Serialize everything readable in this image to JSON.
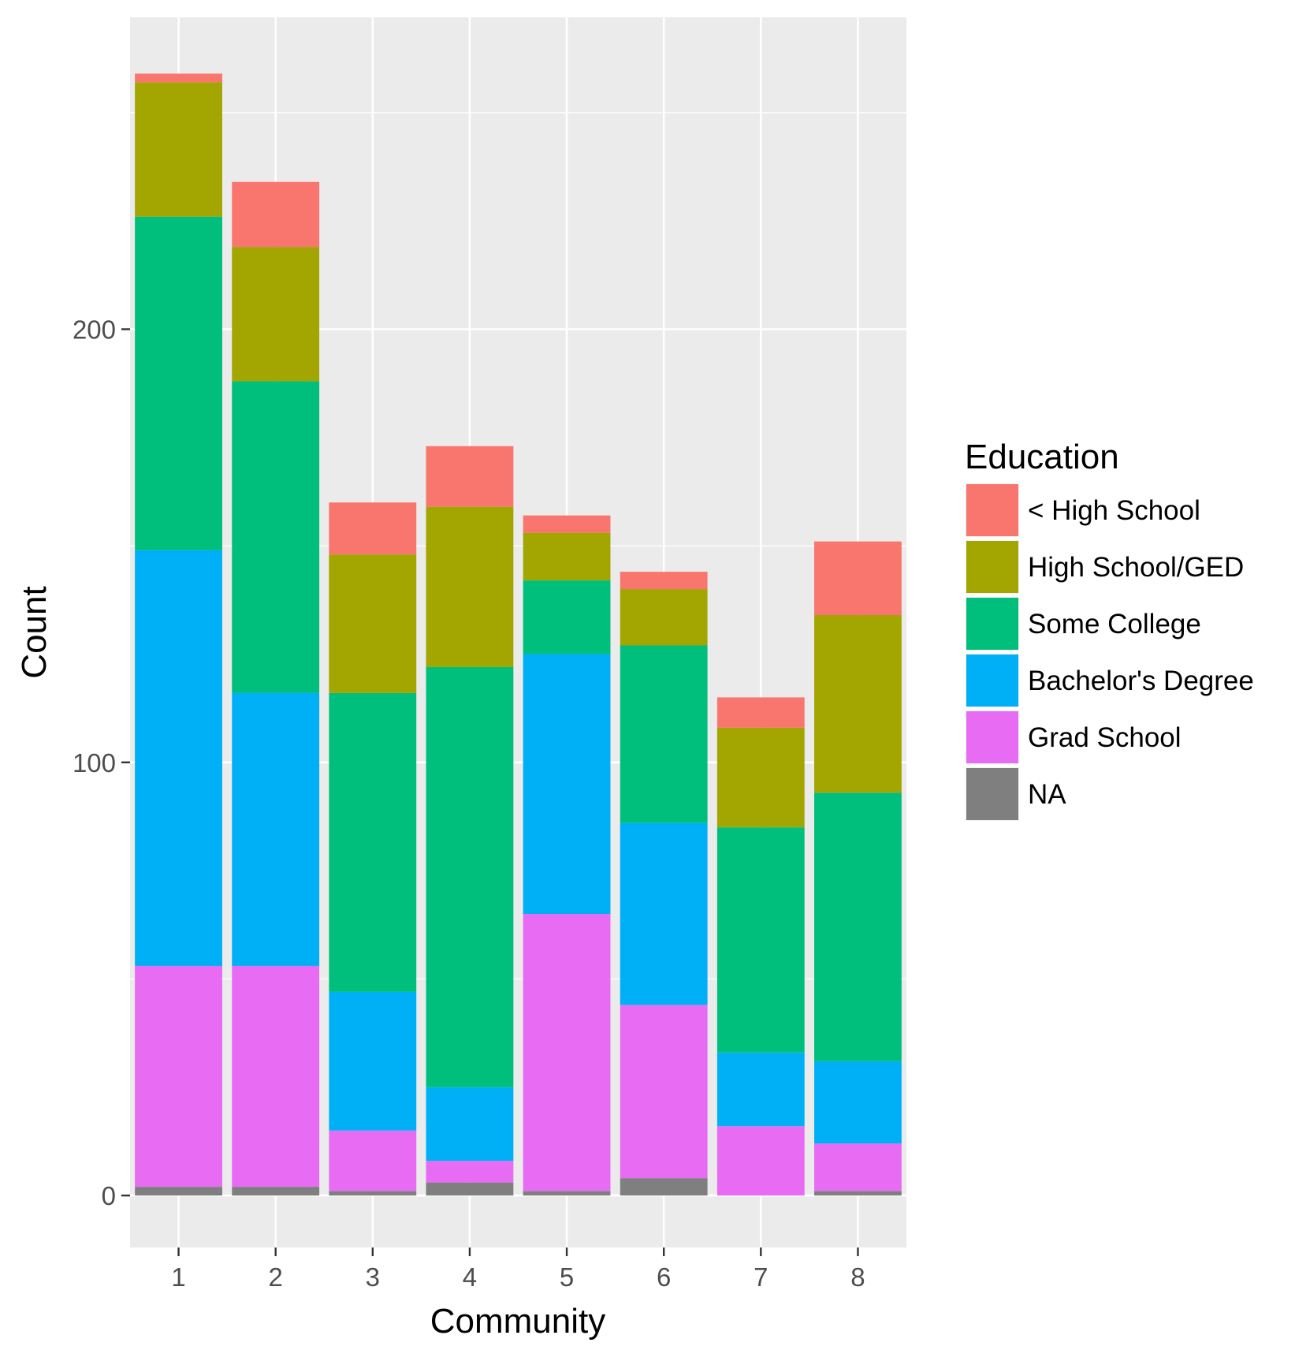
{
  "chart_data": {
    "type": "bar",
    "stacked": true,
    "xlabel": "Community",
    "ylabel": "Count",
    "categories": [
      "1",
      "2",
      "3",
      "4",
      "5",
      "6",
      "7",
      "8"
    ],
    "y_ticks": [
      0,
      100,
      200
    ],
    "ylim": [
      -12,
      272
    ],
    "grid": true,
    "legend": {
      "title": "Education",
      "position": "right"
    },
    "series": [
      {
        "name": "NA",
        "color": "#7f7f7f",
        "values": [
          2,
          2,
          1,
          3,
          1,
          4,
          0,
          1
        ]
      },
      {
        "name": "Grad School",
        "color": "#e76bf3",
        "values": [
          51,
          51,
          14,
          5,
          64,
          40,
          16,
          11
        ]
      },
      {
        "name": "Bachelor's Degree",
        "color": "#00b0f6",
        "values": [
          96,
          63,
          32,
          17,
          60,
          42,
          17,
          19
        ]
      },
      {
        "name": "Some College",
        "color": "#00bf7d",
        "values": [
          77,
          72,
          69,
          97,
          17,
          41,
          52,
          62
        ]
      },
      {
        "name": "High School/GED",
        "color": "#a3a500",
        "values": [
          31,
          31,
          32,
          37,
          11,
          13,
          23,
          41
        ]
      },
      {
        "name": "< High School",
        "color": "#f8766d",
        "values": [
          2,
          15,
          12,
          14,
          4,
          4,
          7,
          17
        ]
      }
    ],
    "legend_order": [
      "< High School",
      "High School/GED",
      "Some College",
      "Bachelor's Degree",
      "Grad School",
      "NA"
    ],
    "panel_background": "#ebebeb",
    "grid_color": "#ffffff"
  }
}
